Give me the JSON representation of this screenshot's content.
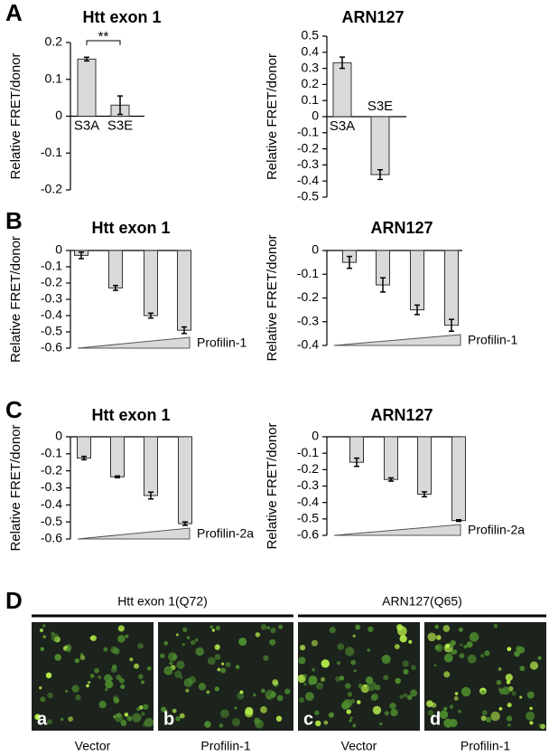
{
  "panels": [
    "A",
    "B",
    "C",
    "D"
  ],
  "chart_data": [
    {
      "type": "bar",
      "title": "Htt exon 1",
      "ylabel": "Relative FRET/donor",
      "categories": [
        "S3A",
        "S3E"
      ],
      "values": [
        0.155,
        0.03
      ],
      "errors": [
        0.005,
        0.025
      ],
      "ylim": [
        -0.2,
        0.2
      ],
      "yticks": [
        -0.2,
        -0.1,
        0,
        0.1,
        0.2
      ],
      "color": "#d9d9d9",
      "significance": "**"
    },
    {
      "type": "bar",
      "title": "ARN127",
      "ylabel": "Relative FRET/donor",
      "categories": [
        "S3A",
        "S3E"
      ],
      "values": [
        0.335,
        -0.36
      ],
      "errors": [
        0.035,
        0.03
      ],
      "ylim": [
        -0.5,
        0.5
      ],
      "yticks": [
        -0.5,
        -0.4,
        -0.3,
        -0.2,
        -0.1,
        0,
        0.1,
        0.2,
        0.3,
        0.4,
        0.5
      ],
      "color": "#d9d9d9"
    },
    {
      "type": "bar",
      "title": "Htt exon 1",
      "ylabel": "Relative FRET/donor",
      "values": [
        -0.03,
        -0.23,
        -0.4,
        -0.49
      ],
      "errors": [
        0.02,
        0.015,
        0.015,
        0.02
      ],
      "ylim": [
        -0.6,
        0
      ],
      "yticks": [
        -0.6,
        -0.5,
        -0.4,
        -0.3,
        -0.2,
        -0.1,
        0
      ],
      "color": "#d9d9d9",
      "gradient_label": "Profilin-1"
    },
    {
      "type": "bar",
      "title": "ARN127",
      "ylabel": "Relative FRET/donor",
      "values": [
        -0.05,
        -0.145,
        -0.25,
        -0.315
      ],
      "errors": [
        0.025,
        0.03,
        0.02,
        0.025
      ],
      "ylim": [
        -0.4,
        0
      ],
      "yticks": [
        -0.4,
        -0.3,
        -0.2,
        -0.1,
        0
      ],
      "color": "#d9d9d9",
      "gradient_label": "Profilin-1"
    },
    {
      "type": "bar",
      "title": "Htt exon 1",
      "ylabel": "Relative FRET/donor",
      "values": [
        -0.125,
        -0.235,
        -0.345,
        -0.51
      ],
      "errors": [
        0.01,
        0.005,
        0.02,
        0.01
      ],
      "ylim": [
        -0.6,
        0
      ],
      "yticks": [
        -0.6,
        -0.5,
        -0.4,
        -0.3,
        -0.2,
        -0.1,
        0
      ],
      "color": "#d9d9d9",
      "gradient_label": "Profilin-2a"
    },
    {
      "type": "bar",
      "title": "ARN127",
      "ylabel": "Relative FRET/donor",
      "values": [
        -0.155,
        -0.26,
        -0.35,
        -0.51
      ],
      "errors": [
        0.025,
        0.01,
        0.015,
        0.005
      ],
      "ylim": [
        -0.6,
        0
      ],
      "yticks": [
        -0.6,
        -0.5,
        -0.4,
        -0.3,
        -0.2,
        -0.1,
        0
      ],
      "color": "#d9d9d9",
      "gradient_label": "Profilin-2a"
    }
  ],
  "images": [
    {
      "title": "Htt exon 1(Q72)",
      "panels": [
        {
          "letter": "a",
          "label": "Vector"
        },
        {
          "letter": "b",
          "label": "Profilin-1"
        }
      ]
    },
    {
      "title": "ARN127(Q65)",
      "panels": [
        {
          "letter": "c",
          "label": "Vector"
        },
        {
          "letter": "d",
          "label": "Profilin-1"
        }
      ]
    }
  ]
}
